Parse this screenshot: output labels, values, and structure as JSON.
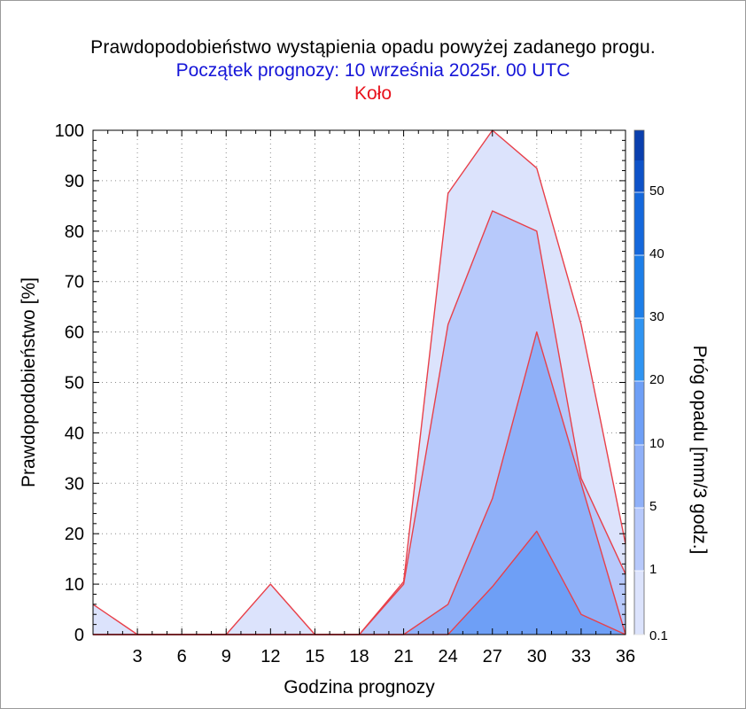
{
  "title": {
    "line1": "Prawdopodobieństwo wystąpienia opadu powyżej zadanego progu.",
    "line2": "Początek prognozy: 10 września 2025r. 00 UTC",
    "line3": "Koło"
  },
  "colors": {
    "title_line2": "#1515d8",
    "title_line3": "#e8121c",
    "series_stroke": "#e8404a"
  },
  "chart_data": {
    "type": "area",
    "xlabel": "Godzina prognozy",
    "ylabel": "Prawdopodobieństwo [%]",
    "xlim": [
      0,
      36
    ],
    "ylim": [
      0,
      100
    ],
    "x": [
      0,
      3,
      6,
      9,
      12,
      15,
      18,
      21,
      24,
      27,
      30,
      33,
      36
    ],
    "x_tick_labels": [
      "3",
      "6",
      "9",
      "12",
      "15",
      "18",
      "21",
      "24",
      "27",
      "30",
      "33",
      "36"
    ],
    "y_tick_labels": [
      "0",
      "10",
      "20",
      "30",
      "40",
      "50",
      "60",
      "70",
      "80",
      "90",
      "100"
    ],
    "grid": true,
    "series": [
      {
        "threshold": 0.1,
        "color": "#dce3fc",
        "values": [
          6,
          0,
          0,
          0,
          10,
          0,
          0,
          10.5,
          87.5,
          100,
          92.5,
          61.5,
          18
        ]
      },
      {
        "threshold": 1,
        "color": "#b7c9fb",
        "values": [
          0,
          0,
          0,
          0,
          0,
          0,
          0,
          10,
          61.5,
          84,
          80,
          31,
          12
        ]
      },
      {
        "threshold": 5,
        "color": "#8fb0f8",
        "values": [
          0,
          0,
          0,
          0,
          0,
          0,
          0,
          0,
          6,
          27,
          60,
          30,
          0
        ]
      },
      {
        "threshold": 10,
        "color": "#6e9ff6",
        "values": [
          0,
          0,
          0,
          0,
          0,
          0,
          0,
          0,
          0,
          9.5,
          20.5,
          4,
          0
        ]
      }
    ],
    "colorbar": {
      "title": "Próg opadu [mm/3 godz.]",
      "labels": [
        "0.1",
        "1",
        "5",
        "10",
        "20",
        "30",
        "40",
        "50"
      ],
      "colors": [
        "#eceffd",
        "#dce3fc",
        "#b7c9fb",
        "#8fb0f8",
        "#6e9ff6",
        "#2f94f2",
        "#1d7ee8",
        "#1568dc",
        "#0e52c8",
        "#0a3fae"
      ]
    }
  }
}
